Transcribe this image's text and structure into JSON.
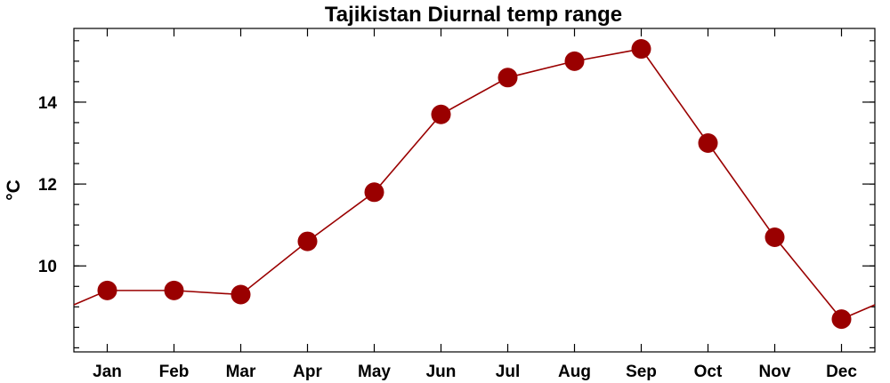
{
  "chart_data": {
    "type": "line",
    "title": "Tajikistan Diurnal temp range",
    "ylabel": "°C",
    "xlabel": "",
    "categories": [
      "Jan",
      "Feb",
      "Mar",
      "Apr",
      "May",
      "Jun",
      "Jul",
      "Aug",
      "Sep",
      "Oct",
      "Nov",
      "Dec"
    ],
    "series": [
      {
        "values": [
          9.4,
          9.4,
          9.3,
          10.6,
          11.8,
          13.7,
          14.6,
          15.0,
          15.3,
          13.0,
          10.7,
          8.7
        ]
      }
    ],
    "ylim": [
      7.9,
      15.8
    ],
    "yticks": [
      10,
      12,
      14
    ],
    "yticklabels": [
      "10",
      "12",
      "14"
    ],
    "y_minor_step": 0.5,
    "wraps_cyclically": true,
    "grid": false,
    "colors": {
      "series": "#9a0000",
      "marker": "#9a0000",
      "axes": "#000000"
    }
  }
}
